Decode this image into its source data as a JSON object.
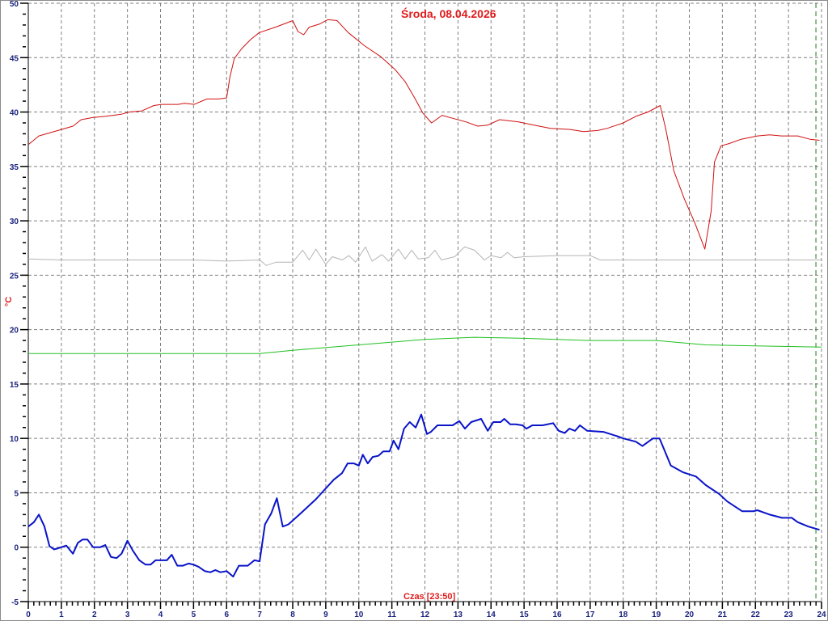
{
  "chart_data": {
    "type": "line",
    "title": "Środa, 08.04.2026",
    "xlabel": "Czas [23:50]",
    "ylabel": "°C",
    "xlim": [
      0,
      24
    ],
    "ylim": [
      -5,
      50
    ],
    "x_ticks": [
      0,
      1,
      2,
      3,
      4,
      5,
      6,
      7,
      8,
      9,
      10,
      11,
      12,
      13,
      14,
      15,
      16,
      17,
      18,
      19,
      20,
      21,
      22,
      23,
      24
    ],
    "y_ticks": [
      -5,
      0,
      5,
      10,
      15,
      20,
      25,
      30,
      35,
      40,
      45,
      50
    ],
    "grid": true,
    "current_time_marker": 23.83,
    "colors": {
      "marker": "#1a7a1a",
      "grid": "#808080",
      "axis_labels": "#1a237e",
      "title": "#e01b1b"
    },
    "series": [
      {
        "color": "#d01010",
        "width": 1,
        "x": [
          0,
          0.32,
          0.66,
          1,
          1.35,
          1.6,
          1.96,
          2.33,
          2.82,
          3.06,
          3.43,
          3.8,
          4.04,
          4.53,
          4.73,
          5.02,
          5.4,
          5.76,
          6,
          6.1,
          6.23,
          6.45,
          6.74,
          6.99,
          7.48,
          8,
          8.16,
          8.33,
          8.5,
          8.82,
          9.07,
          9.34,
          9.68,
          10.17,
          10.66,
          11.1,
          11.4,
          11.69,
          11.94,
          12.2,
          12.52,
          12.75,
          13.24,
          13.6,
          13.9,
          14.26,
          14.83,
          15.3,
          15.8,
          16.4,
          16.8,
          17.23,
          17.52,
          18,
          18.38,
          18.75,
          19.12,
          19.29,
          19.53,
          19.85,
          20.17,
          20.47,
          20.66,
          20.76,
          20.96,
          21.2,
          21.57,
          22.06,
          22.43,
          22.79,
          23.28,
          23.65,
          23.94
        ],
        "y": [
          37.0,
          37.8,
          38.1,
          38.4,
          38.7,
          39.3,
          39.5,
          39.6,
          39.8,
          40.0,
          40.1,
          40.6,
          40.7,
          40.7,
          40.8,
          40.7,
          41.2,
          41.2,
          41.3,
          43.2,
          44.9,
          45.8,
          46.7,
          47.3,
          47.8,
          48.4,
          47.4,
          47.1,
          47.8,
          48.1,
          48.5,
          48.4,
          47.3,
          46.1,
          45.1,
          43.9,
          42.8,
          41.3,
          39.9,
          39.0,
          39.7,
          39.5,
          39.1,
          38.7,
          38.8,
          39.3,
          39.1,
          38.8,
          38.5,
          38.4,
          38.2,
          38.3,
          38.5,
          39.0,
          39.6,
          40.0,
          40.6,
          38.4,
          34.6,
          32.0,
          29.8,
          27.4,
          30.9,
          35.4,
          36.9,
          37.1,
          37.5,
          37.8,
          37.9,
          37.8,
          37.8,
          37.5,
          37.4
        ]
      },
      {
        "color": "#b4b4b4",
        "width": 1,
        "x": [
          0,
          1,
          2,
          3,
          4,
          5,
          6,
          7,
          7.2,
          7.5,
          8,
          8.3,
          8.5,
          8.7,
          9,
          9.2,
          9.5,
          9.7,
          9.9,
          10.2,
          10.4,
          10.7,
          10.9,
          11.2,
          11.4,
          11.6,
          11.8,
          12.1,
          12.3,
          12.5,
          12.9,
          13.2,
          13.5,
          13.8,
          14,
          14.3,
          14.5,
          14.7,
          15,
          16,
          17,
          17.3,
          18,
          20,
          22,
          24
        ],
        "y": [
          26.5,
          26.4,
          26.4,
          26.4,
          26.4,
          26.4,
          26.3,
          26.4,
          25.9,
          26.2,
          26.2,
          27.3,
          26.4,
          27.4,
          26.0,
          26.7,
          26.4,
          26.8,
          26.2,
          27.6,
          26.3,
          26.9,
          26.3,
          27.4,
          26.5,
          27.3,
          26.5,
          26.6,
          27.3,
          26.4,
          26.7,
          27.6,
          27.3,
          26.4,
          26.8,
          26.6,
          27.1,
          26.6,
          26.7,
          26.8,
          26.8,
          26.4,
          26.4,
          26.4,
          26.4,
          26.4
        ]
      },
      {
        "color": "#22c022",
        "width": 1,
        "x": [
          0,
          3,
          7,
          8,
          10,
          12,
          13.5,
          15,
          17,
          19,
          20.5,
          22,
          24
        ],
        "y": [
          17.8,
          17.8,
          17.8,
          18.1,
          18.6,
          19.1,
          19.3,
          19.2,
          19.0,
          19.0,
          18.6,
          18.5,
          18.4
        ]
      },
      {
        "color": "#0a14c8",
        "width": 2,
        "x": [
          0,
          0.17,
          0.32,
          0.49,
          0.64,
          0.78,
          0.9,
          1.15,
          1.35,
          1.5,
          1.64,
          1.79,
          1.96,
          2.18,
          2.33,
          2.5,
          2.67,
          2.82,
          3,
          3.16,
          3.36,
          3.55,
          3.7,
          3.85,
          4.04,
          4.19,
          4.34,
          4.51,
          4.68,
          4.85,
          5,
          5.15,
          5.34,
          5.51,
          5.66,
          5.81,
          6,
          6.2,
          6.37,
          6.64,
          6.84,
          7,
          7.16,
          7.35,
          7.52,
          7.7,
          7.87,
          8.2,
          8.7,
          9.24,
          9.49,
          9.66,
          9.85,
          10,
          10.12,
          10.27,
          10.42,
          10.59,
          10.74,
          10.93,
          11.05,
          11.2,
          11.37,
          11.54,
          11.72,
          11.89,
          12.06,
          12.18,
          12.38,
          12.84,
          13.04,
          13.21,
          13.4,
          13.7,
          13.9,
          14.07,
          14.29,
          14.4,
          14.58,
          14.75,
          14.95,
          15.07,
          15.25,
          15.56,
          15.88,
          16.05,
          16.23,
          16.37,
          16.54,
          16.69,
          16.91,
          17.4,
          17.82,
          18,
          18.38,
          18.58,
          18.9,
          19.1,
          19.44,
          19.8,
          20.2,
          20.5,
          20.9,
          21.15,
          21.6,
          21.94,
          22.06,
          22.43,
          22.8,
          23.1,
          23.28,
          23.6,
          23.94
        ],
        "y": [
          1.9,
          2.3,
          3.0,
          1.9,
          0.1,
          -0.2,
          -0.1,
          0.15,
          -0.6,
          0.4,
          0.7,
          0.7,
          0,
          0,
          0.2,
          -0.9,
          -1.0,
          -0.6,
          0.6,
          -0.3,
          -1.2,
          -1.6,
          -1.6,
          -1.2,
          -1.2,
          -1.2,
          -0.7,
          -1.7,
          -1.7,
          -1.5,
          -1.6,
          -1.8,
          -2.2,
          -2.3,
          -2.1,
          -2.3,
          -2.2,
          -2.7,
          -1.7,
          -1.7,
          -1.2,
          -1.3,
          2.1,
          3.1,
          4.5,
          1.9,
          2.1,
          3.0,
          4.4,
          6.2,
          6.8,
          7.7,
          7.7,
          7.5,
          8.5,
          7.7,
          8.3,
          8.4,
          8.8,
          8.8,
          9.8,
          9.0,
          10.9,
          11.5,
          11.0,
          12.2,
          10.4,
          10.6,
          11.2,
          11.2,
          11.6,
          10.9,
          11.5,
          11.8,
          10.7,
          11.5,
          11.5,
          11.8,
          11.3,
          11.3,
          11.2,
          10.9,
          11.2,
          11.2,
          11.4,
          10.7,
          10.5,
          10.9,
          10.7,
          11.2,
          10.7,
          10.6,
          10.2,
          10.0,
          9.7,
          9.3,
          10.0,
          10.0,
          7.5,
          6.9,
          6.5,
          5.7,
          4.9,
          4.2,
          3.3,
          3.3,
          3.4,
          3.0,
          2.7,
          2.7,
          2.3,
          1.9,
          1.6
        ]
      }
    ]
  }
}
